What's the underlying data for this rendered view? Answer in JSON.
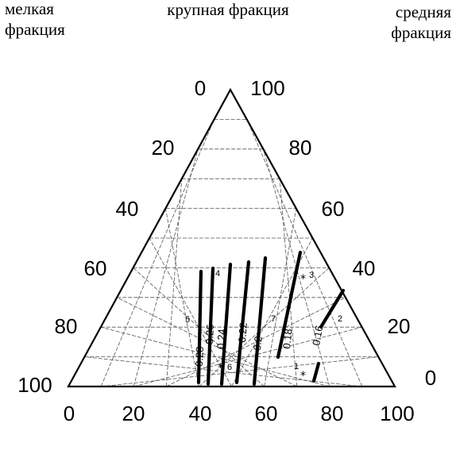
{
  "corners": {
    "fine": [
      "мелкая",
      "фракция"
    ],
    "medium": [
      "средняя",
      "фракция"
    ],
    "coarse": "крупная фракция"
  },
  "axes": {
    "bottom_ticks": [
      "0",
      "20",
      "40",
      "60",
      "80",
      "100"
    ],
    "left_ticks": [
      "0",
      "20",
      "40",
      "60",
      "80",
      "100"
    ],
    "right_ticks": [
      "100",
      "80",
      "60",
      "40",
      "20",
      "0"
    ]
  },
  "iso_labels": [
    "0.28",
    "0.26",
    "0.24",
    "0.22",
    "0.2",
    "0.18",
    "0.16"
  ],
  "point_labels": [
    "1",
    "2",
    "3",
    "4",
    "5",
    "6",
    "7"
  ],
  "colors": {
    "ink": "#000000",
    "grid": "#555555",
    "background": "#ffffff"
  }
}
